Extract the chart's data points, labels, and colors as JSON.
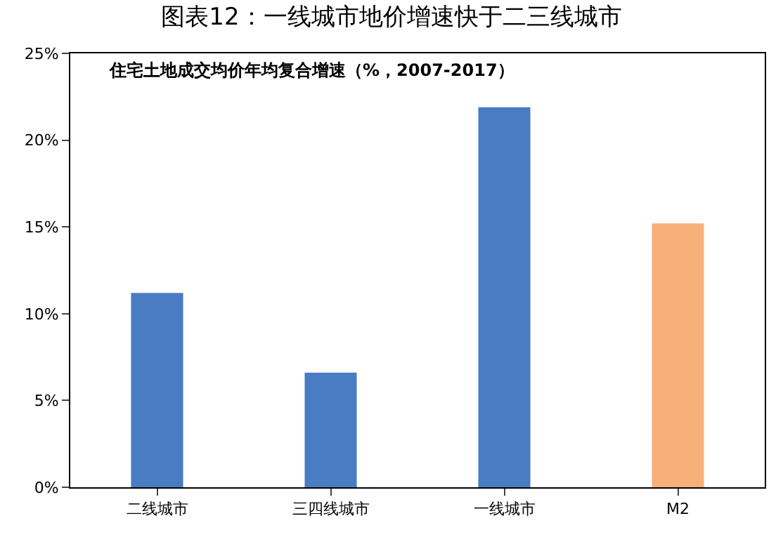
{
  "chart_data": {
    "type": "bar",
    "title": "图表12：一线城市地价增速快于二三线城市",
    "subtitle": "住宅土地成交均价年均复合增速（%，2007-2017）",
    "categories": [
      "二线城市",
      "三四线城市",
      "一线城市",
      "M2"
    ],
    "values": [
      11.2,
      6.6,
      21.9,
      15.2
    ],
    "colors": [
      "#4a7cc4",
      "#4a7cc4",
      "#4a7cc4",
      "#f7b07a"
    ],
    "ylim": [
      0,
      25
    ],
    "yticks": [
      {
        "value": 0,
        "label": "0%"
      },
      {
        "value": 5,
        "label": "5%"
      },
      {
        "value": 10,
        "label": "10%"
      },
      {
        "value": 15,
        "label": "15%"
      },
      {
        "value": 20,
        "label": "20%"
      },
      {
        "value": 25,
        "label": "25%"
      }
    ],
    "xlabel": null
  }
}
